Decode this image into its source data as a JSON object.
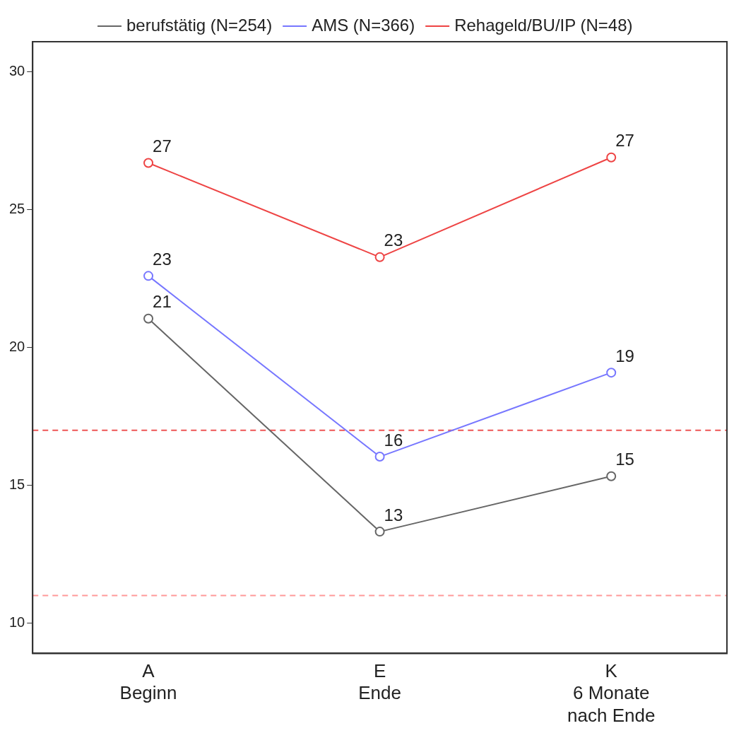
{
  "chart_data": {
    "type": "line",
    "categories": [
      "A\nBeginn",
      "E\nEnde",
      "K\n6 Monate\nnach Ende"
    ],
    "series": [
      {
        "name": "berufstätig (N=254)",
        "color": "#666666",
        "values": [
          21.05,
          13.32,
          15.33
        ],
        "value_labels": [
          "21",
          "13",
          "15"
        ]
      },
      {
        "name": "AMS (N=366)",
        "color": "#7777ff",
        "values": [
          22.6,
          16.04,
          19.09
        ],
        "value_labels": [
          "23",
          "16",
          "19"
        ]
      },
      {
        "name": "Rehageld/BU/IP (N=48)",
        "color": "#ee4444",
        "values": [
          26.7,
          23.28,
          26.9
        ],
        "value_labels": [
          "27",
          "23",
          "27"
        ]
      }
    ],
    "ylim": [
      8.9,
      31.1
    ],
    "yticks": [
      10,
      15,
      20,
      25,
      30
    ],
    "grid": false,
    "legend": "top",
    "marker": "circle",
    "line_style": "solid",
    "ref_lines": [
      {
        "axis": "y",
        "value": 17,
        "color": "#ee5555",
        "line_style": "dashed"
      },
      {
        "axis": "y",
        "value": 11,
        "color": "#ff9999",
        "line_style": "dashed"
      }
    ]
  }
}
